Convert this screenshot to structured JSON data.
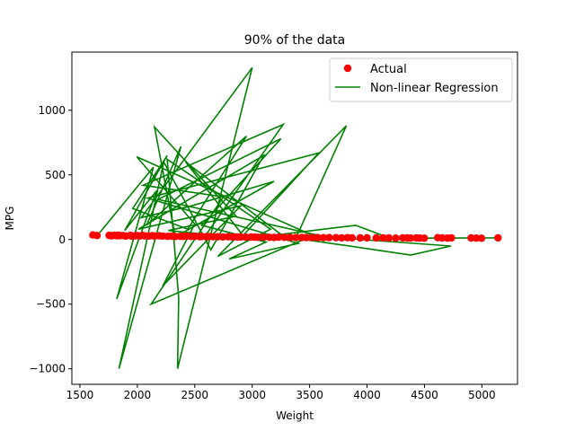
{
  "chart_data": {
    "type": "scatter",
    "title": "90% of the data",
    "xlabel": "Weight",
    "ylabel": "MPG",
    "xlim": [
      1430,
      5310
    ],
    "ylim": [
      -1120,
      1450
    ],
    "xticks": [
      1500,
      2000,
      2500,
      3000,
      3500,
      4000,
      4500,
      5000
    ],
    "yticks": [
      -1000,
      -500,
      0,
      500,
      1000
    ],
    "xtick_labels": [
      "1500",
      "2000",
      "2500",
      "3000",
      "3500",
      "4000",
      "4500",
      "5000"
    ],
    "ytick_labels": [
      "−1000",
      "−500",
      "0",
      "500",
      "1000"
    ],
    "grid": false,
    "legend": {
      "position": "top-right",
      "entries": [
        "Actual",
        "Non-linear Regression"
      ]
    },
    "colors": {
      "actual": "#ff0000",
      "regression": "#008000"
    },
    "series": [
      {
        "name": "Actual",
        "type": "scatter",
        "points": [
          [
            1613,
            35
          ],
          [
            1649,
            31
          ],
          [
            1755,
            32
          ],
          [
            1773,
            28
          ],
          [
            1800,
            33
          ],
          [
            1825,
            29
          ],
          [
            1835,
            34
          ],
          [
            1850,
            30
          ],
          [
            1875,
            31
          ],
          [
            1900,
            27
          ],
          [
            1940,
            32
          ],
          [
            1950,
            26
          ],
          [
            1985,
            29
          ],
          [
            1995,
            31
          ],
          [
            2020,
            27
          ],
          [
            2045,
            32
          ],
          [
            2065,
            28
          ],
          [
            2100,
            27
          ],
          [
            2130,
            30
          ],
          [
            2150,
            26
          ],
          [
            2190,
            29
          ],
          [
            2220,
            27
          ],
          [
            2265,
            25
          ],
          [
            2300,
            26
          ],
          [
            2330,
            23
          ],
          [
            2375,
            25
          ],
          [
            2400,
            24
          ],
          [
            2430,
            26
          ],
          [
            2470,
            23
          ],
          [
            2500,
            25
          ],
          [
            2545,
            22
          ],
          [
            2560,
            24
          ],
          [
            2600,
            22
          ],
          [
            2625,
            23
          ],
          [
            2660,
            21
          ],
          [
            2700,
            22
          ],
          [
            2745,
            20
          ],
          [
            2790,
            21
          ],
          [
            2830,
            20
          ],
          [
            2870,
            19
          ],
          [
            2900,
            20
          ],
          [
            2945,
            18
          ],
          [
            2990,
            19
          ],
          [
            3020,
            18
          ],
          [
            3050,
            17
          ],
          [
            3100,
            18
          ],
          [
            3150,
            17
          ],
          [
            3190,
            16
          ],
          [
            3230,
            18
          ],
          [
            3280,
            17
          ],
          [
            3330,
            16
          ],
          [
            3380,
            15
          ],
          [
            3430,
            16
          ],
          [
            3470,
            15
          ],
          [
            3520,
            14
          ],
          [
            3570,
            15
          ],
          [
            3620,
            14
          ],
          [
            3670,
            15
          ],
          [
            3730,
            14
          ],
          [
            3780,
            13
          ],
          [
            3830,
            14
          ],
          [
            3870,
            13
          ],
          [
            3940,
            12
          ],
          [
            4000,
            13
          ],
          [
            4080,
            12
          ],
          [
            4140,
            13
          ],
          [
            4190,
            12
          ],
          [
            4250,
            11
          ],
          [
            4310,
            13
          ],
          [
            4350,
            12
          ],
          [
            4380,
            11
          ],
          [
            4430,
            12
          ],
          [
            4460,
            11
          ],
          [
            4499,
            10
          ],
          [
            4615,
            14
          ],
          [
            4655,
            12
          ],
          [
            4700,
            11
          ],
          [
            4735,
            13
          ],
          [
            4906,
            12
          ],
          [
            4951,
            11
          ],
          [
            4997,
            10
          ],
          [
            5140,
            13
          ]
        ]
      },
      {
        "name": "Non-linear Regression",
        "type": "line",
        "points": [
          [
            1613,
            33
          ],
          [
            1649,
            28
          ],
          [
            2140,
            560
          ],
          [
            1820,
            -460
          ],
          [
            2170,
            380
          ],
          [
            1890,
            70
          ],
          [
            2260,
            650
          ],
          [
            1960,
            240
          ],
          [
            2440,
            80
          ],
          [
            2950,
            800
          ],
          [
            2080,
            110
          ],
          [
            2380,
            720
          ],
          [
            1840,
            -1000
          ],
          [
            2230,
            600
          ],
          [
            2640,
            -80
          ],
          [
            3100,
            650
          ],
          [
            2010,
            80
          ],
          [
            2900,
            260
          ],
          [
            2220,
            -360
          ],
          [
            2500,
            120
          ],
          [
            1995,
            640
          ],
          [
            3530,
            30
          ],
          [
            2120,
            -500
          ],
          [
            2750,
            330
          ],
          [
            2050,
            420
          ],
          [
            3270,
            890
          ],
          [
            2600,
            40
          ],
          [
            2270,
            70
          ],
          [
            2860,
            180
          ],
          [
            2150,
            870
          ],
          [
            2330,
            20
          ],
          [
            3190,
            450
          ],
          [
            2470,
            260
          ],
          [
            2035,
            170
          ],
          [
            3000,
            1330
          ],
          [
            2350,
            -1000
          ],
          [
            2360,
            -450
          ],
          [
            2260,
            620
          ],
          [
            3160,
            80
          ],
          [
            2700,
            -130
          ],
          [
            3820,
            880
          ],
          [
            3380,
            10
          ],
          [
            4380,
            -120
          ],
          [
            4730,
            -50
          ],
          [
            3640,
            20
          ],
          [
            2180,
            310
          ],
          [
            3250,
            780
          ],
          [
            2560,
            110
          ],
          [
            3120,
            -20
          ],
          [
            2800,
            -150
          ],
          [
            3400,
            -30
          ],
          [
            2090,
            320
          ],
          [
            3580,
            670
          ],
          [
            2920,
            30
          ],
          [
            2420,
            600
          ],
          [
            3250,
            40
          ],
          [
            3900,
            110
          ],
          [
            4200,
            10
          ],
          [
            5000,
            12
          ],
          [
            5140,
            13
          ]
        ]
      }
    ]
  }
}
